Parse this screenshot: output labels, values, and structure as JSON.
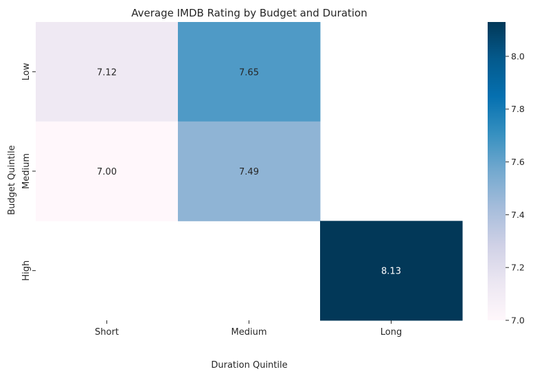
{
  "chart_data": {
    "type": "heatmap",
    "title": "Average IMDB Rating by Budget and Duration",
    "xlabel": "Duration Quintile",
    "ylabel": "Budget Quintile",
    "x_categories": [
      "Short",
      "Medium",
      "Long"
    ],
    "y_categories": [
      "Low",
      "Medium",
      "High"
    ],
    "values": [
      [
        7.12,
        7.65,
        null
      ],
      [
        7.0,
        7.49,
        null
      ],
      [
        null,
        null,
        8.13
      ]
    ],
    "value_format": "2dp",
    "colormap": "PuBu",
    "color_range": [
      7.0,
      8.13
    ],
    "colorbar_ticks": [
      "7.0",
      "7.2",
      "7.4",
      "7.6",
      "7.8",
      "8.0"
    ],
    "colors": {
      "low": "#fff7fb",
      "high": "#023858",
      "text_dark": "#262626",
      "text_light": "#ffffff"
    },
    "grid": false,
    "legend": "colorbar-right"
  }
}
